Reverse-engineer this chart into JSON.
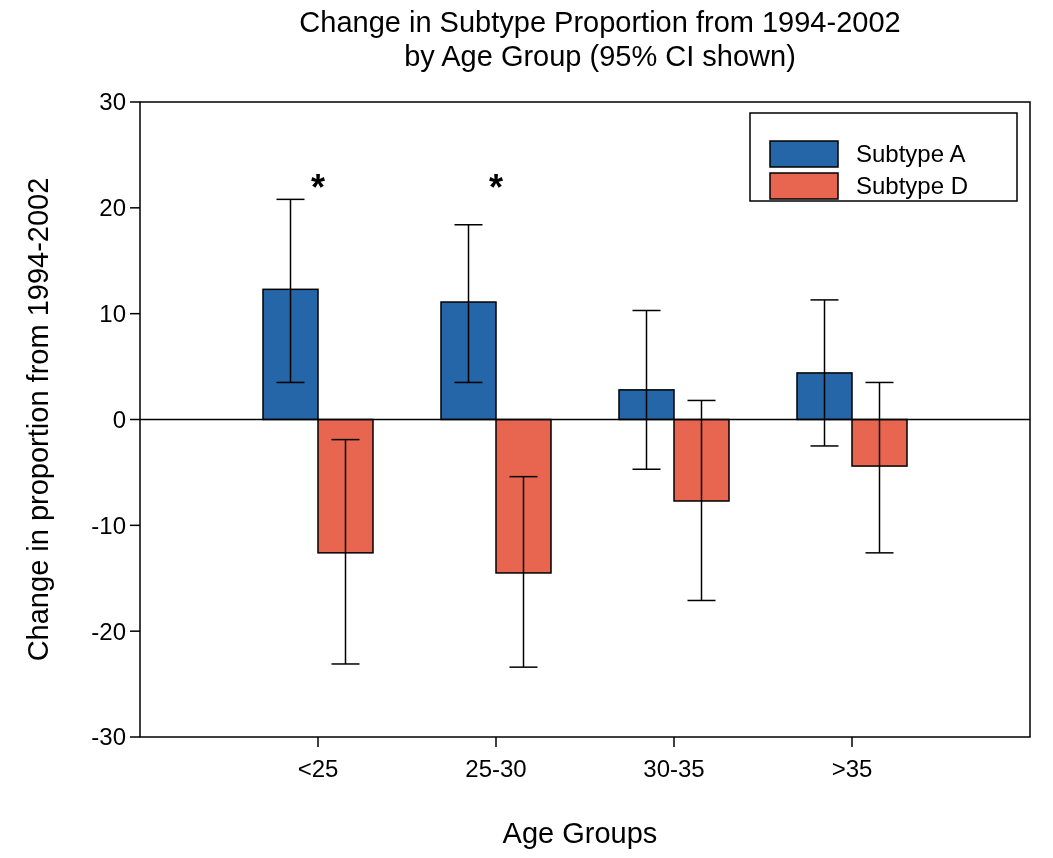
{
  "chart_data": {
    "type": "bar",
    "title": "Change in Subtype Proportion from 1994-2002\nby Age Group (95% CI shown)",
    "xlabel": "Age Groups",
    "ylabel": "Change in proportion from 1994-2002",
    "categories": [
      "<25",
      "25-30",
      "30-35",
      ">35"
    ],
    "series": [
      {
        "name": "Subtype A",
        "color": "#2466a8",
        "values": [
          12.3,
          11.1,
          2.8,
          4.4
        ],
        "errors": [
          [
            3.5,
            20.8
          ],
          [
            3.5,
            18.4
          ],
          [
            -4.7,
            10.3
          ],
          [
            -2.5,
            11.3
          ]
        ]
      },
      {
        "name": "Subtype D",
        "color": "#e8654f",
        "values": [
          -12.6,
          -14.5,
          -7.7,
          -4.4
        ],
        "errors": [
          [
            -23.1,
            -1.9
          ],
          [
            -23.4,
            -5.4
          ],
          [
            -17.1,
            1.8
          ],
          [
            -12.6,
            3.5
          ]
        ]
      }
    ],
    "ylim": [
      -30,
      30
    ],
    "yticks": [
      -30,
      -20,
      -10,
      0,
      10,
      20,
      30
    ],
    "legend": "top right",
    "annotations": [
      "*",
      "*"
    ]
  }
}
